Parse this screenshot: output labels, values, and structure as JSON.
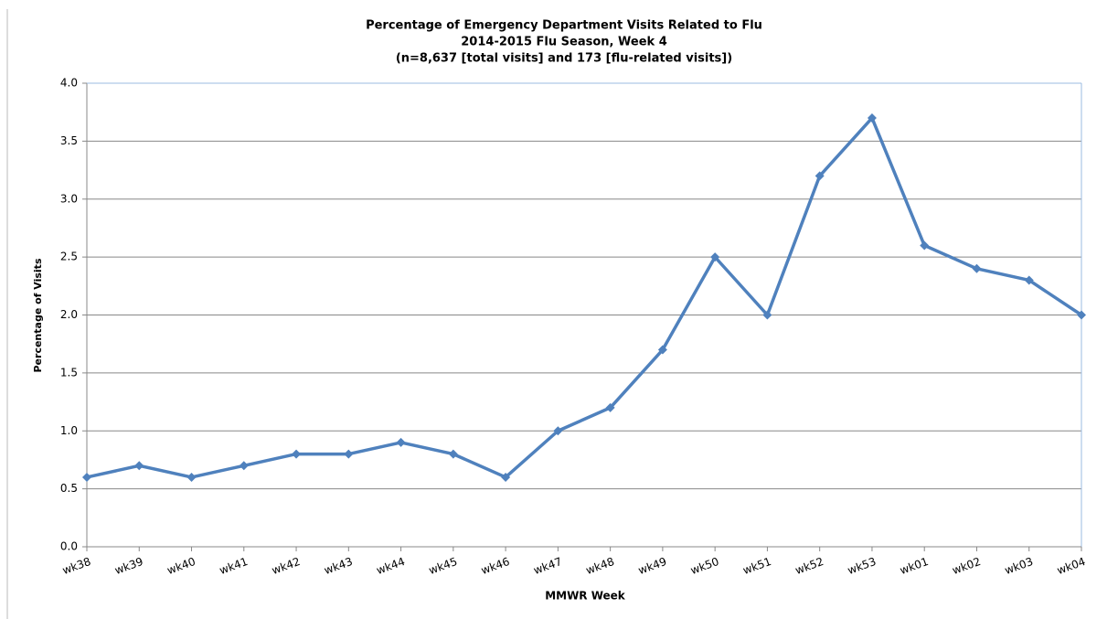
{
  "chart_data": {
    "type": "line",
    "title": [
      "Percentage of Emergency Department Visits Related to Flu",
      "2014-2015  Flu Season, Week 4",
      "(n=8,637  [total visits] and 173 [flu-related visits])"
    ],
    "x_label": "MMWR Week",
    "y_label": "Percentage of Visits",
    "categories": [
      "wk38",
      "wk39",
      "wk40",
      "wk41",
      "wk42",
      "wk43",
      "wk44",
      "wk45",
      "wk46",
      "wk47",
      "wk48",
      "wk49",
      "wk50",
      "wk51",
      "wk52",
      "wk53",
      "wk01",
      "wk02",
      "wk03",
      "wk04"
    ],
    "series": [
      {
        "color": "#4f81bd",
        "values": [
          0.6,
          0.7,
          0.6,
          0.7,
          0.8,
          0.8,
          0.9,
          0.8,
          0.6,
          1.0,
          1.2,
          1.7,
          2.5,
          2.0,
          3.2,
          3.7,
          2.6,
          2.4,
          2.3,
          2.0
        ]
      }
    ],
    "ylim": [
      0,
      4
    ],
    "yticks": [
      {
        "value": 0,
        "label": "0.0"
      },
      0.5,
      {
        "value": 1,
        "label": "1.0"
      },
      1.5,
      {
        "value": 2,
        "label": "2.0"
      },
      2.5,
      {
        "value": 3,
        "label": "3.0"
      },
      3.5,
      {
        "value": 4,
        "label": "4.0"
      }
    ],
    "grid": true
  }
}
